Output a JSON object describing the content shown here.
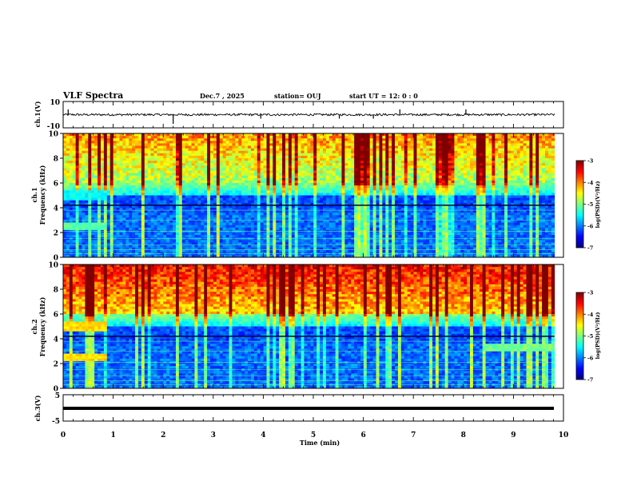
{
  "header": {
    "title": "VLF Spectra",
    "date": "Dec.7 , 2025",
    "station": "station= OUJ",
    "start_ut": "start UT =  12: 0  : 0"
  },
  "chart_data": [
    {
      "type": "line",
      "panel": "ch1-waveform",
      "ylabel": "ch.1(V)",
      "ylim": [
        -10,
        10
      ],
      "y_tick_labels": [
        "10",
        "-10"
      ],
      "x": [
        0,
        10
      ],
      "baseline": 0,
      "spikes_min": [
        0.1,
        2.2,
        3.95,
        5.52,
        6.2,
        6.73,
        8.05
      ]
    },
    {
      "type": "heatmap",
      "panel": "ch1-spectrogram",
      "ylabel": "ch.1\nFrequency (kHz)",
      "ylim": [
        0,
        10
      ],
      "y_tick_labels": [
        "0",
        "2",
        "4",
        "6",
        "8",
        "10"
      ],
      "colorbar": {
        "label": "log(PSD)(V²/Hz)",
        "range": [
          -7,
          -3
        ],
        "tick_labels": [
          "-3",
          "-4",
          "-5",
          "-6",
          "-7"
        ]
      }
    },
    {
      "type": "heatmap",
      "panel": "ch2-spectrogram",
      "ylabel": "ch.2\nFrequency (kHz)",
      "ylim": [
        0,
        10
      ],
      "y_tick_labels": [
        "0",
        "2",
        "4",
        "6",
        "8",
        "10"
      ],
      "colorbar": {
        "label": "log(PSD)(V²/Hz)",
        "range": [
          -7,
          -3
        ],
        "tick_labels": [
          "-3",
          "-4",
          "-5",
          "-6",
          "-7"
        ]
      }
    },
    {
      "type": "line",
      "panel": "ch3-waveform",
      "ylabel": "ch.3(V)",
      "ylim": [
        -5,
        5
      ],
      "y_tick_labels": [
        "5",
        "-5"
      ],
      "x": [
        0,
        10
      ],
      "baseline": -1.2
    }
  ],
  "x_axis": {
    "label": "Time (min)",
    "range": [
      0,
      10
    ],
    "tick_labels": [
      "0",
      "1",
      "2",
      "3",
      "4",
      "5",
      "6",
      "7",
      "8",
      "9",
      "10"
    ]
  },
  "colors": {
    "colormap": [
      "#00007f",
      "#0000ff",
      "#007fff",
      "#00ffff",
      "#7fff7f",
      "#ffff00",
      "#ff7f00",
      "#ff0000",
      "#7f0000"
    ],
    "trace": "#000000"
  }
}
